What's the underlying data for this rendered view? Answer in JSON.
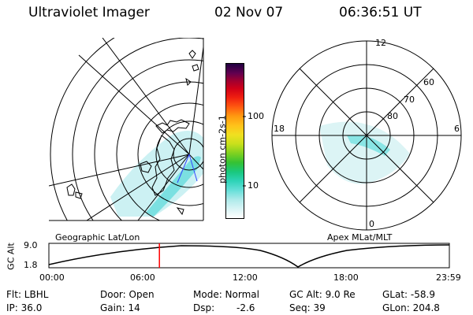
{
  "header": {
    "title": "Ultraviolet Imager",
    "date": "02 Nov 07",
    "time": "06:36:51 UT"
  },
  "colorbar": {
    "label": "photon cm-2s-1",
    "ticks": [
      "100",
      "10"
    ]
  },
  "left_map": {
    "caption": "Geographic Lat/Lon"
  },
  "right_map": {
    "caption": "Apex MLat/MLT",
    "lat_labels": [
      "80",
      "70",
      "60"
    ],
    "mlt_labels": {
      "top": "12",
      "bottom": "0",
      "left": "18",
      "right": "6"
    }
  },
  "timeline": {
    "ylabel": "GC Alt",
    "yticks": [
      "9.0",
      "1.8"
    ],
    "xticks": [
      "00:00",
      "06:00",
      "12:00",
      "18:00",
      "23:59"
    ],
    "current_time_fraction": 0.276
  },
  "info": {
    "flt": "Flt: LBHL",
    "door": "Door: Open",
    "mode": "Mode: Normal",
    "gcalt": "GC Alt: 9.0 Re",
    "glat": "GLat: -58.9",
    "ip": "IP: 36.0",
    "gain": "Gain: 14",
    "dsp_label": "Dsp:",
    "dsp_value": "-2.6",
    "seq": "Seq: 39",
    "glon": "GLon: 204.8"
  },
  "colors": {
    "aurora": "#7fe3e3",
    "marker": "#ff0000",
    "subsolar_line": "#3344ff"
  }
}
